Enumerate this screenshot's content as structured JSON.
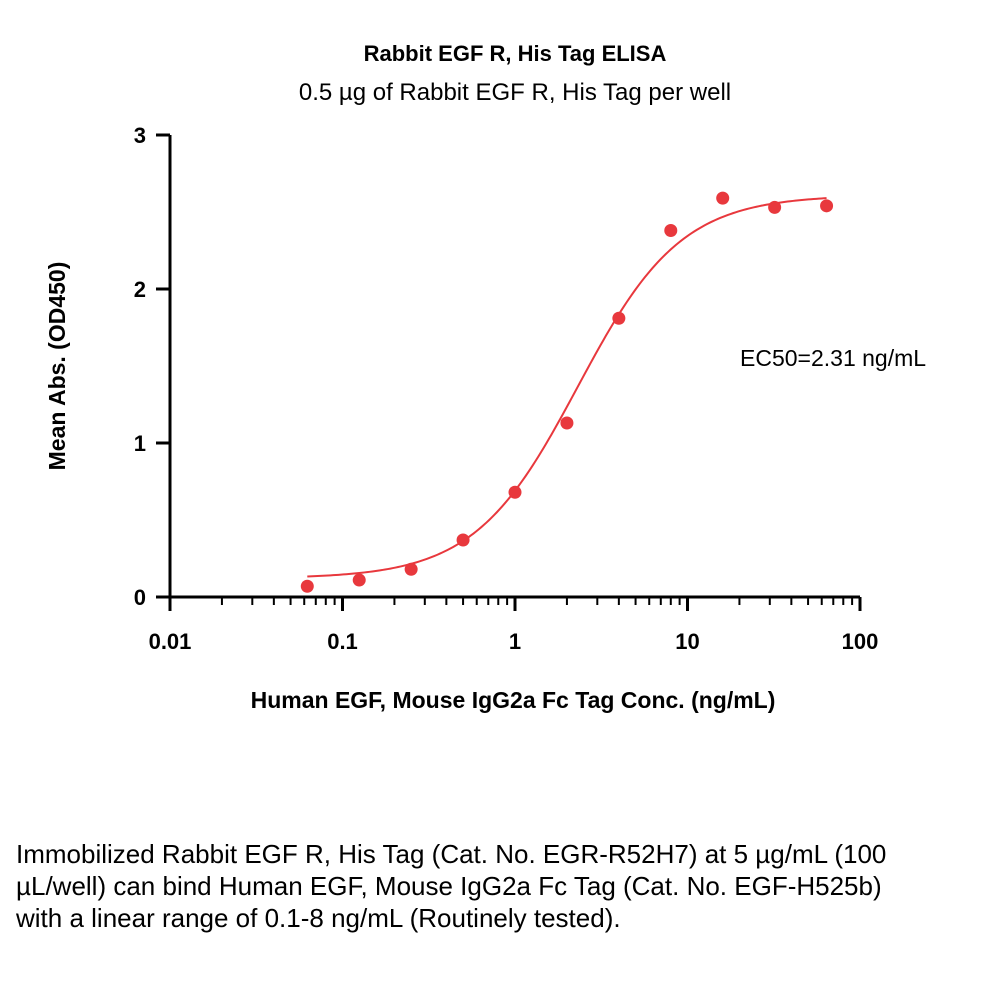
{
  "chart_data": {
    "type": "scatter",
    "title": "Rabbit EGF R, His Tag ELISA",
    "subtitle": "0.5 µg of Rabbit EGF R, His Tag per well",
    "xlabel": "Human EGF, Mouse IgG2a Fc Tag Conc. (ng/mL)",
    "ylabel": "Mean Abs. (OD450)",
    "x_scale": "log",
    "xlim": [
      0.01,
      100
    ],
    "ylim": [
      0,
      3
    ],
    "x_ticks": [
      "0.01",
      "0.1",
      "1",
      "10",
      "100"
    ],
    "y_ticks": [
      "0",
      "1",
      "2",
      "3"
    ],
    "x": [
      0.0625,
      0.125,
      0.25,
      0.5,
      1,
      2,
      4,
      8,
      16,
      32,
      64
    ],
    "y": [
      0.07,
      0.11,
      0.18,
      0.37,
      0.68,
      1.13,
      1.81,
      2.38,
      2.59,
      2.53,
      2.54
    ],
    "fit": {
      "model": "4PL",
      "bottom": 0.12,
      "top": 2.61,
      "ec50": 2.31,
      "hill": 1.45
    },
    "annotation": "EC50=2.31 ng/mL",
    "color": "#e8383d",
    "grid": false,
    "legend": "none"
  },
  "caption": "Immobilized Rabbit EGF R, His Tag (Cat. No. EGR-R52H7) at 5 µg/mL (100 µL/well) can bind Human EGF, Mouse IgG2a Fc Tag (Cat. No. EGF-H525b) with a linear range of 0.1-8 ng/mL (Routinely tested)."
}
